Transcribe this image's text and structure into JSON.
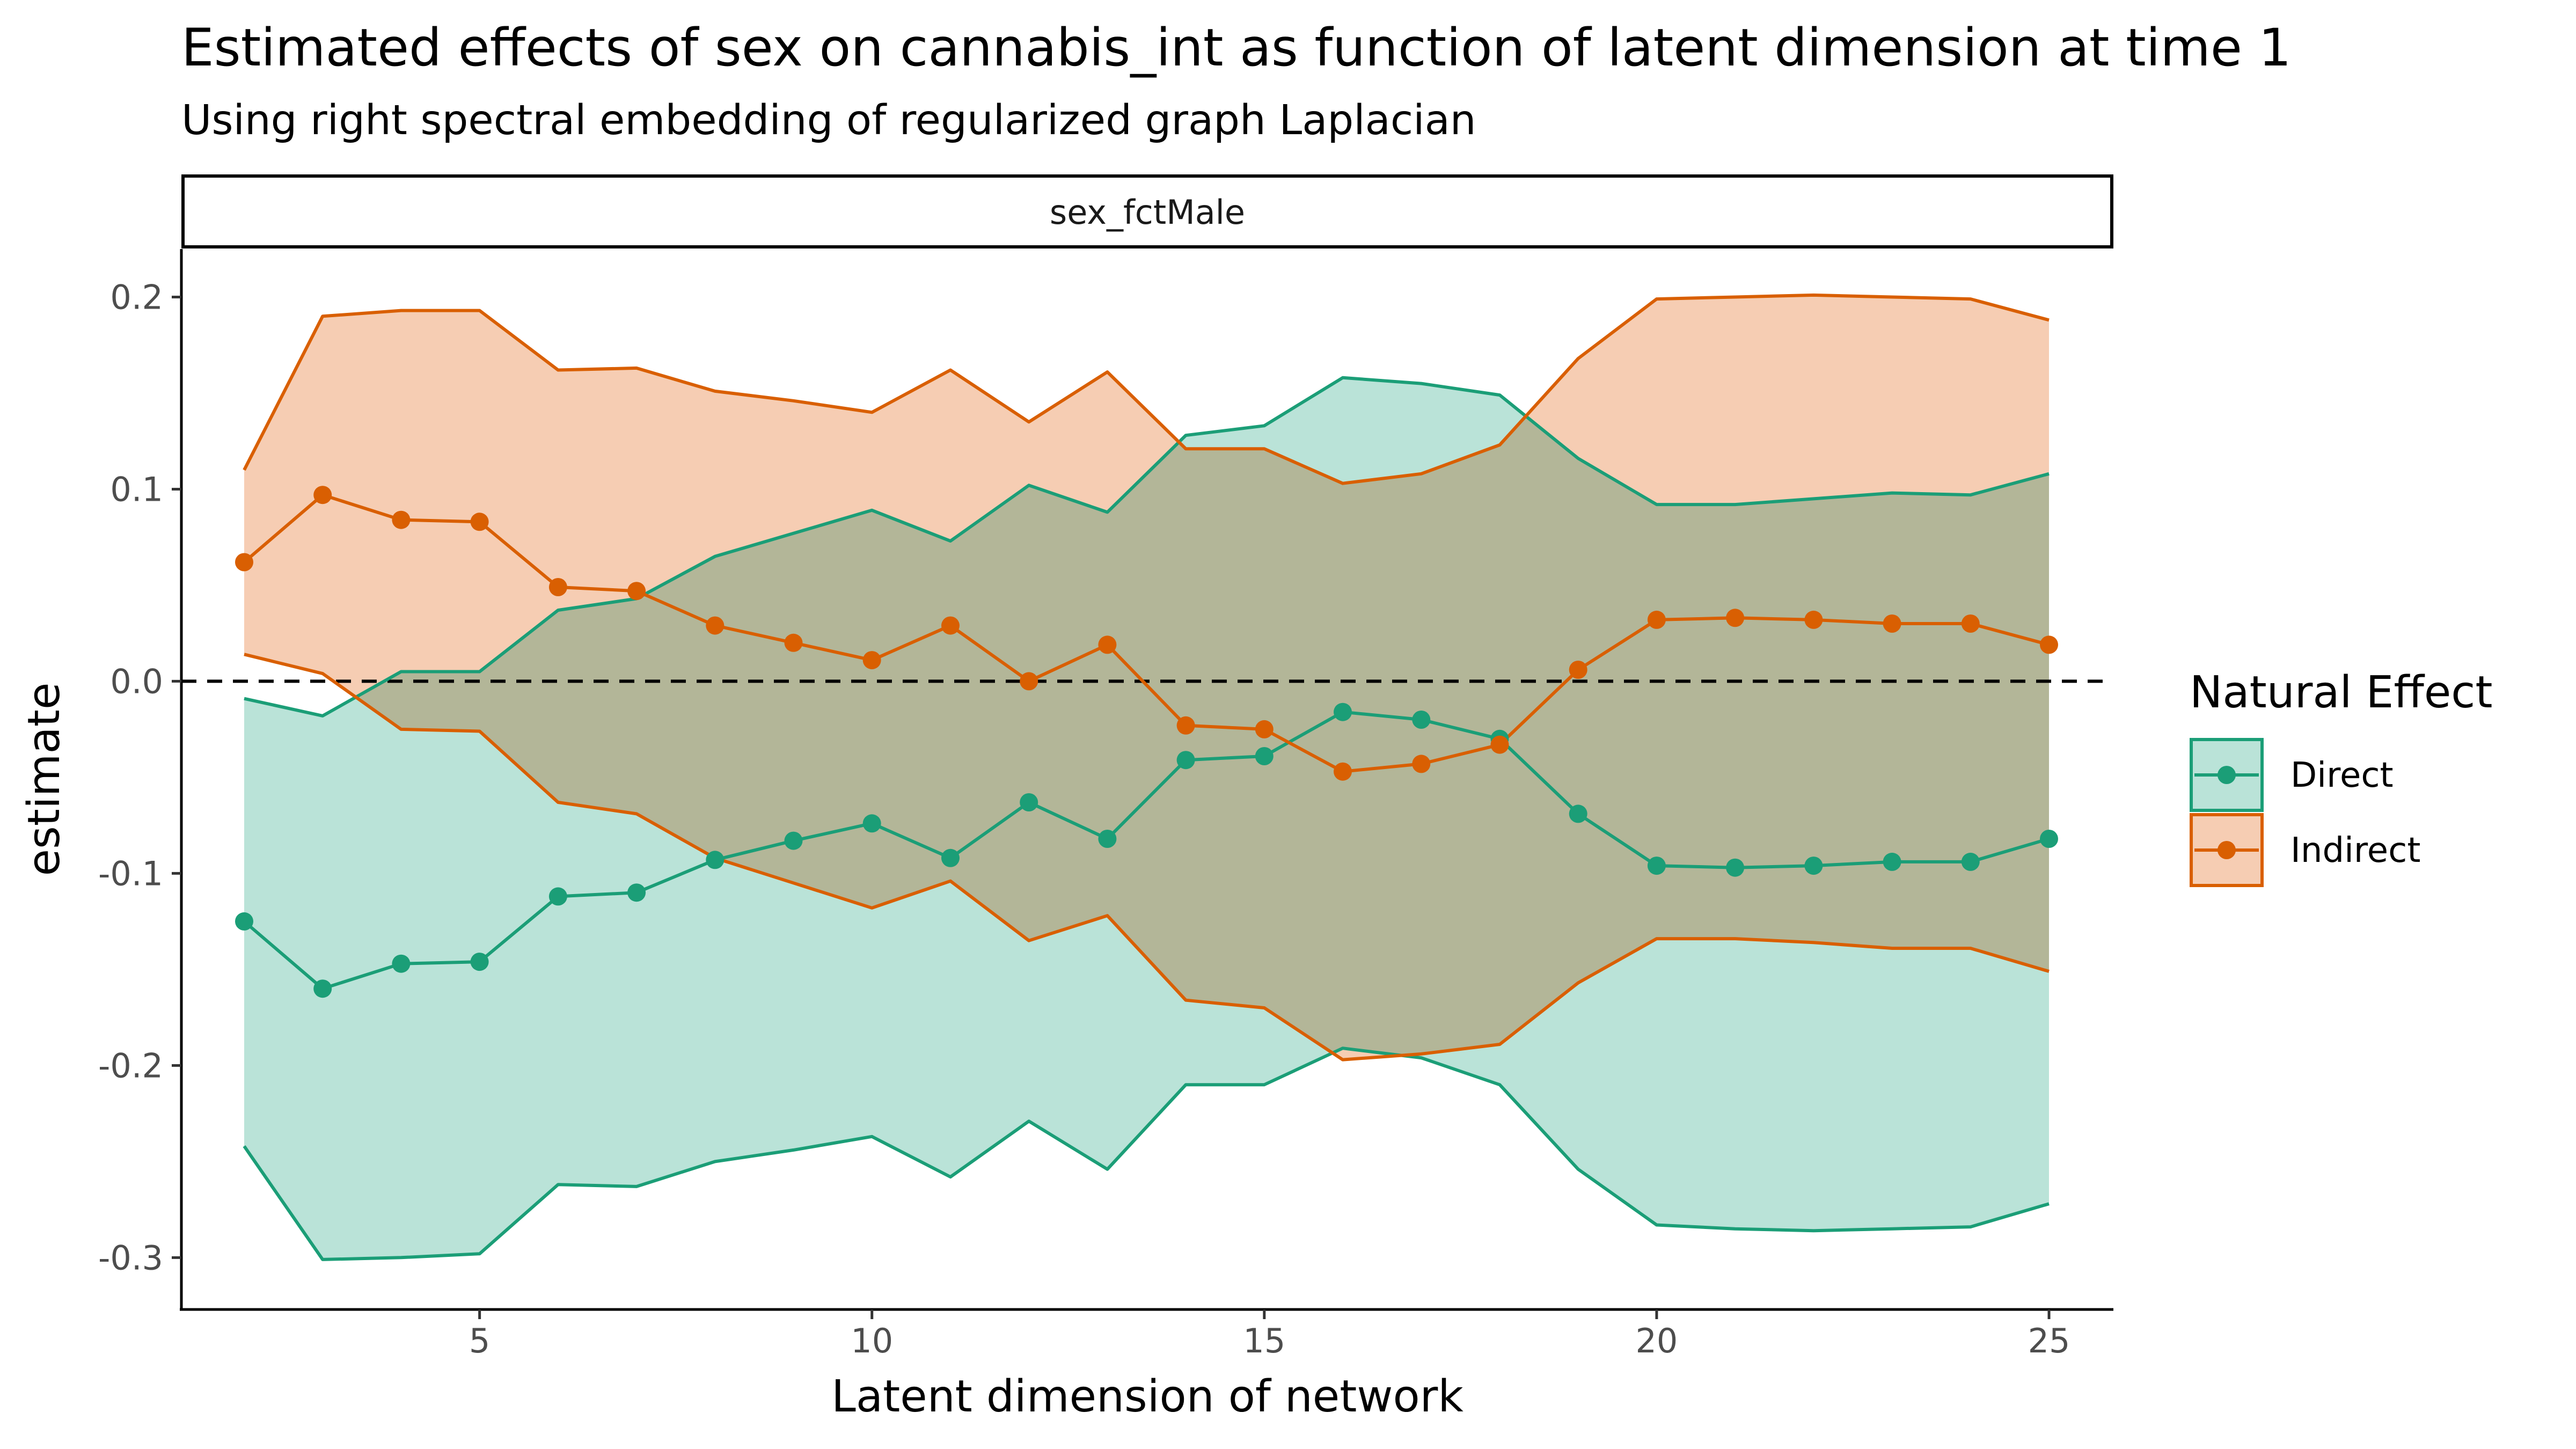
{
  "chart_data": {
    "type": "line",
    "title": "Estimated effects of sex on cannabis_int as function of latent dimension at time 1",
    "subtitle": "Using right spectral embedding of regularized graph Laplacian",
    "facet": "sex_fctMale",
    "xlabel": "Latent dimension of network",
    "ylabel": "estimate",
    "xlim": [
      1.2,
      25.8
    ],
    "ylim": [
      -0.327,
      0.225
    ],
    "x_ticks": [
      5,
      10,
      15,
      20,
      25
    ],
    "x_tick_labels": [
      "5",
      "10",
      "15",
      "20",
      "25"
    ],
    "y_ticks": [
      -0.3,
      -0.2,
      -0.1,
      0.0,
      0.1,
      0.2
    ],
    "y_tick_labels": [
      "-0.3",
      "-0.2",
      "-0.1",
      "0.0",
      "0.1",
      "0.2"
    ],
    "reference_line": 0,
    "grid": false,
    "legend": {
      "title": "Natural Effect",
      "position": "right"
    },
    "x": [
      2,
      3,
      4,
      5,
      6,
      7,
      8,
      9,
      10,
      11,
      12,
      13,
      14,
      15,
      16,
      17,
      18,
      19,
      20,
      21,
      22,
      23,
      24,
      25
    ],
    "series": [
      {
        "name": "Direct",
        "color": "#1b9e77",
        "fill": "#bae3d8",
        "estimate": [
          -0.125,
          -0.16,
          -0.147,
          -0.146,
          -0.112,
          -0.11,
          -0.093,
          -0.083,
          -0.074,
          -0.092,
          -0.063,
          -0.082,
          -0.041,
          -0.039,
          -0.016,
          -0.02,
          -0.03,
          -0.069,
          -0.096,
          -0.097,
          -0.096,
          -0.094,
          -0.094,
          -0.082
        ],
        "lower": [
          -0.242,
          -0.301,
          -0.3,
          -0.298,
          -0.262,
          -0.263,
          -0.25,
          -0.244,
          -0.237,
          -0.258,
          -0.229,
          -0.254,
          -0.21,
          -0.21,
          -0.191,
          -0.196,
          -0.21,
          -0.254,
          -0.283,
          -0.285,
          -0.286,
          -0.285,
          -0.284,
          -0.272
        ],
        "upper": [
          -0.009,
          -0.018,
          0.005,
          0.005,
          0.037,
          0.043,
          0.065,
          0.077,
          0.089,
          0.073,
          0.102,
          0.088,
          0.128,
          0.133,
          0.158,
          0.155,
          0.149,
          0.116,
          0.092,
          0.092,
          0.095,
          0.098,
          0.097,
          0.108
        ]
      },
      {
        "name": "Indirect",
        "color": "#d95f02",
        "fill": "#f6cdb3",
        "estimate": [
          0.062,
          0.097,
          0.084,
          0.083,
          0.049,
          0.047,
          0.029,
          0.02,
          0.011,
          0.029,
          0.0,
          0.019,
          -0.023,
          -0.025,
          -0.047,
          -0.043,
          -0.033,
          0.006,
          0.032,
          0.033,
          0.032,
          0.03,
          0.03,
          0.019
        ],
        "lower": [
          0.014,
          0.004,
          -0.025,
          -0.026,
          -0.063,
          -0.069,
          -0.092,
          -0.105,
          -0.118,
          -0.104,
          -0.135,
          -0.122,
          -0.166,
          -0.17,
          -0.197,
          -0.194,
          -0.189,
          -0.157,
          -0.134,
          -0.134,
          -0.136,
          -0.139,
          -0.139,
          -0.151
        ],
        "upper": [
          0.11,
          0.19,
          0.193,
          0.193,
          0.162,
          0.163,
          0.151,
          0.146,
          0.14,
          0.162,
          0.135,
          0.161,
          0.121,
          0.121,
          0.103,
          0.108,
          0.123,
          0.168,
          0.199,
          0.2,
          0.201,
          0.2,
          0.199,
          0.188
        ]
      }
    ]
  }
}
